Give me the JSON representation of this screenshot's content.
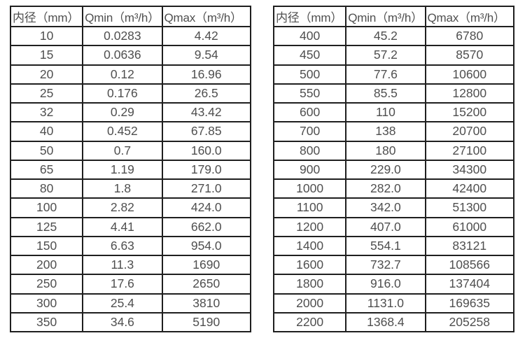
{
  "columns": [
    "内径（mm）",
    "Qmin（m³/h）",
    "Qmax（m³/h）"
  ],
  "tables": [
    {
      "name": "flow-rate-table-small-diameters",
      "rows": [
        [
          "10",
          "0.0283",
          "4.42"
        ],
        [
          "15",
          "0.0636",
          "9.54"
        ],
        [
          "20",
          "0.12",
          "16.96"
        ],
        [
          "25",
          "0.176",
          "26.5"
        ],
        [
          "32",
          "0.29",
          "43.42"
        ],
        [
          "40",
          "0.452",
          "67.85"
        ],
        [
          "50",
          "0.7",
          "160.0"
        ],
        [
          "65",
          "1.19",
          "179.0"
        ],
        [
          "80",
          "1.8",
          "271.0"
        ],
        [
          "100",
          "2.82",
          "424.0"
        ],
        [
          "125",
          "4.41",
          "662.0"
        ],
        [
          "150",
          "6.63",
          "954.0"
        ],
        [
          "200",
          "11.3",
          "1690"
        ],
        [
          "250",
          "17.6",
          "2650"
        ],
        [
          "300",
          "25.4",
          "3810"
        ],
        [
          "350",
          "34.6",
          "5190"
        ]
      ]
    },
    {
      "name": "flow-rate-table-large-diameters",
      "rows": [
        [
          "400",
          "45.2",
          "6780"
        ],
        [
          "450",
          "57.2",
          "8570"
        ],
        [
          "500",
          "77.6",
          "10600"
        ],
        [
          "550",
          "85.5",
          "12800"
        ],
        [
          "600",
          "110",
          "15200"
        ],
        [
          "700",
          "138",
          "20700"
        ],
        [
          "800",
          "180",
          "27100"
        ],
        [
          "900",
          "229.0",
          "34300"
        ],
        [
          "1000",
          "282.0",
          "42400"
        ],
        [
          "1100",
          "342.0",
          "51300"
        ],
        [
          "1200",
          "407.0",
          "61000"
        ],
        [
          "1400",
          "554.1",
          "83121"
        ],
        [
          "1600",
          "732.7",
          "108566"
        ],
        [
          "1800",
          "916.0",
          "137404"
        ],
        [
          "2000",
          "1131.0",
          "169635"
        ],
        [
          "2200",
          "1368.4",
          "205258"
        ]
      ]
    }
  ],
  "colors": {
    "border": "#1f1f1f",
    "text": "#4f4f4f",
    "background": "#ffffff"
  }
}
